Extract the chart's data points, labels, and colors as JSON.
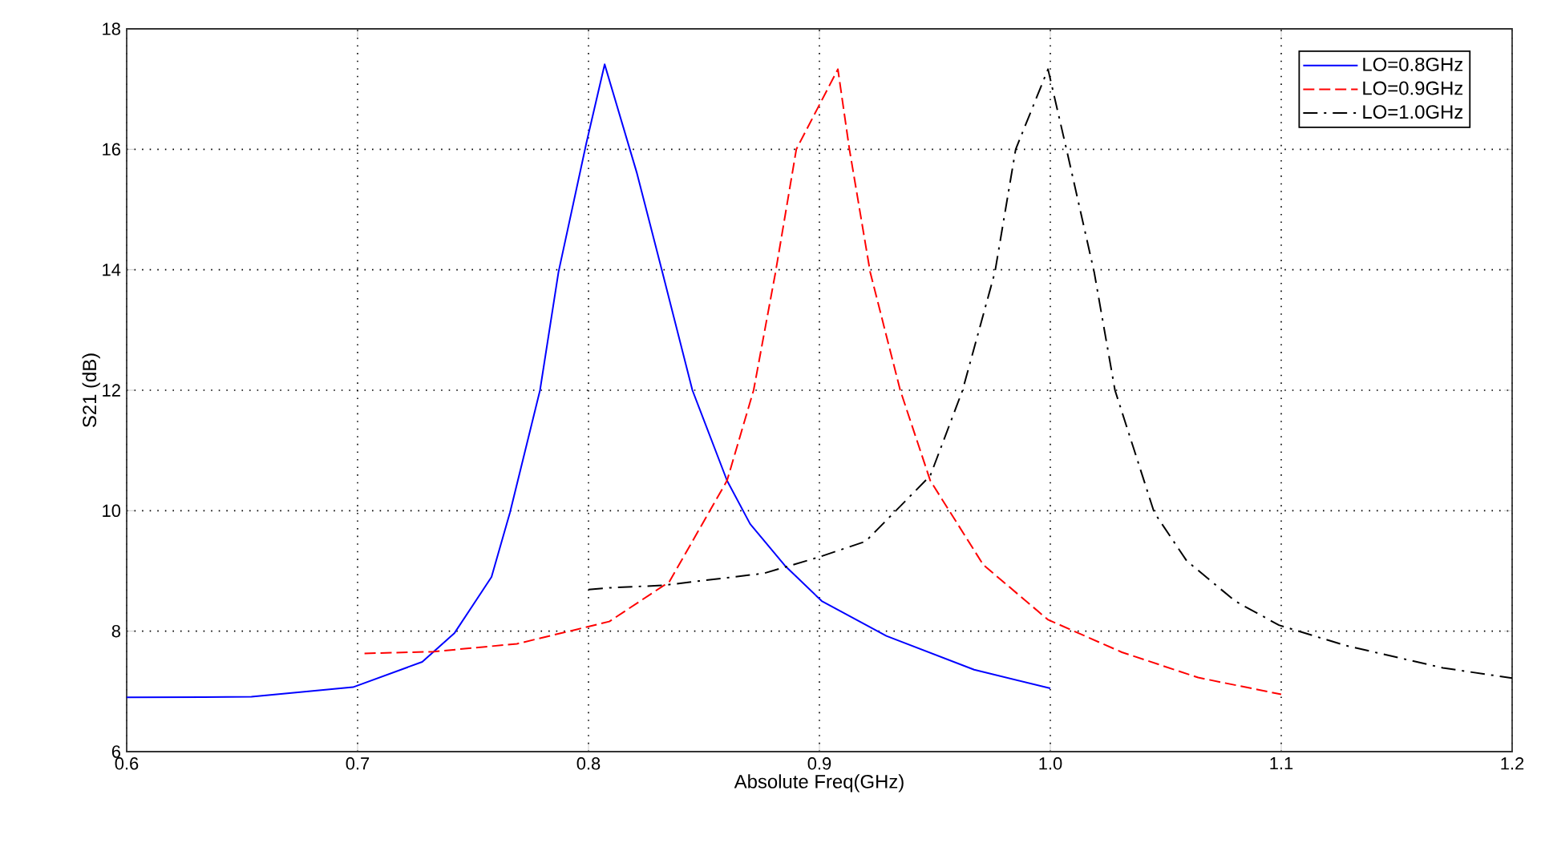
{
  "chart_data": {
    "type": "line",
    "xlabel": "Absolute Freq(GHz)",
    "ylabel": "S21 (dB)",
    "xlim": [
      0.6,
      1.2
    ],
    "ylim": [
      6,
      18
    ],
    "xticks": [
      0.6,
      0.7,
      0.8,
      0.9,
      {
        "value": 1.0,
        "label": "1.0"
      },
      1.1,
      1.2
    ],
    "yticks": [
      6,
      8,
      10,
      12,
      14,
      16,
      18
    ],
    "grid": true,
    "legend": "top right",
    "marker": "none",
    "series": [
      {
        "name": "LO=0.8GHz",
        "color": "#0000ff",
        "line_style": "solid",
        "x": [
          0.6,
          0.654,
          0.698,
          0.728,
          0.742,
          0.758,
          0.766,
          0.779,
          0.787,
          0.799,
          0.807,
          0.821,
          0.832,
          0.845,
          0.86,
          0.87,
          0.885,
          0.901,
          0.929,
          0.967,
          1.0
        ],
        "values": [
          6.9,
          6.91,
          7.07,
          7.49,
          7.97,
          8.9,
          9.97,
          12.0,
          13.96,
          16.09,
          17.41,
          15.6,
          13.96,
          12.0,
          10.5,
          9.78,
          9.09,
          8.5,
          7.92,
          7.36,
          7.05
        ]
      },
      {
        "name": "LO=0.9GHz",
        "color": "#ff0000",
        "line_style": "dashed",
        "x": [
          0.703,
          0.733,
          0.769,
          0.795,
          0.809,
          0.835,
          0.86,
          0.8715,
          0.881,
          0.89,
          0.908,
          0.913,
          0.922,
          0.935,
          0.948,
          0.971,
          0.999,
          1.031,
          1.064,
          1.1
        ],
        "values": [
          7.63,
          7.66,
          7.79,
          8.03,
          8.16,
          8.82,
          10.5,
          12.0,
          13.96,
          16.0,
          17.33,
          16.0,
          13.96,
          12.0,
          10.5,
          9.1,
          8.19,
          7.65,
          7.23,
          6.95
        ]
      },
      {
        "name": "LO=1.0GHz",
        "color": "#000000",
        "line_style": "dashdot",
        "x": [
          0.8,
          0.809,
          0.832,
          0.876,
          0.899,
          0.92,
          0.948,
          0.962,
          0.976,
          0.985,
          0.999,
          1.007,
          1.019,
          1.028,
          1.045,
          1.059,
          1.08,
          1.099,
          1.128,
          1.17,
          1.2
        ],
        "values": [
          8.69,
          8.72,
          8.76,
          8.96,
          9.22,
          9.49,
          10.58,
          12.0,
          13.96,
          16.0,
          17.33,
          16.0,
          13.96,
          12.0,
          9.97,
          9.17,
          8.5,
          8.1,
          7.76,
          7.39,
          7.22
        ]
      }
    ]
  }
}
